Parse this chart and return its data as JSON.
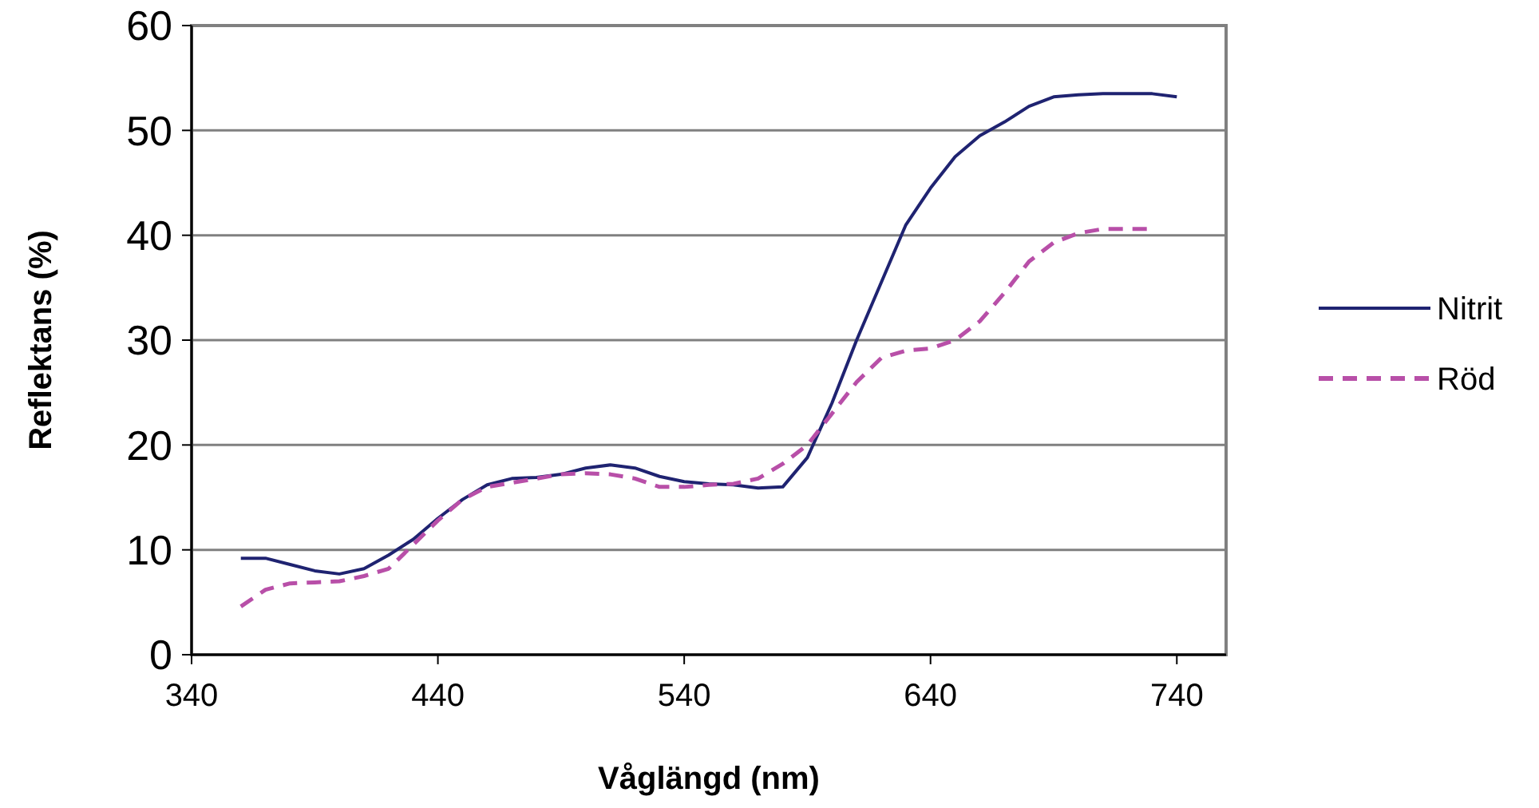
{
  "chart_data": {
    "type": "line",
    "xlabel": "Våglängd (nm)",
    "ylabel": "Reflektans (%)",
    "xlim": [
      340,
      760
    ],
    "xticks": [
      340,
      440,
      540,
      640,
      740
    ],
    "ylim": [
      0,
      60
    ],
    "yticks": [
      0,
      10,
      20,
      30,
      40,
      50,
      60
    ],
    "grid": "y",
    "legend": "right",
    "marker": "none",
    "series": [
      {
        "name": "Nitrit",
        "color": "#1f2371",
        "line_style": "solid",
        "x": [
          360,
          370,
          380,
          390,
          400,
          410,
          420,
          430,
          440,
          450,
          460,
          470,
          480,
          490,
          500,
          510,
          520,
          530,
          540,
          550,
          560,
          570,
          580,
          590,
          600,
          610,
          620,
          630,
          640,
          650,
          660,
          670,
          680,
          690,
          700,
          710,
          720,
          730,
          740
        ],
        "values": [
          9.2,
          9.2,
          8.6,
          8.0,
          7.7,
          8.2,
          9.5,
          11,
          13,
          14.8,
          16.2,
          16.8,
          16.9,
          17.2,
          17.8,
          18.1,
          17.8,
          17.0,
          16.5,
          16.3,
          16.2,
          15.9,
          16.0,
          18.8,
          24,
          30,
          35.5,
          41,
          44.5,
          47.5,
          49.5,
          50.8,
          52.3,
          53.2,
          53.4,
          53.5,
          53.5,
          53.5,
          53.2
        ]
      },
      {
        "name": "Röd",
        "color": "#b84fa8",
        "line_style": "dashed",
        "x": [
          360,
          370,
          380,
          390,
          400,
          410,
          420,
          430,
          440,
          450,
          460,
          470,
          480,
          490,
          500,
          510,
          520,
          530,
          540,
          550,
          560,
          570,
          580,
          590,
          600,
          610,
          620,
          630,
          640,
          650,
          660,
          670,
          680,
          690,
          700,
          710,
          720,
          730
        ],
        "values": [
          4.6,
          6.2,
          6.8,
          6.9,
          7.0,
          7.5,
          8.2,
          10.5,
          12.8,
          14.8,
          16.0,
          16.4,
          16.8,
          17.2,
          17.3,
          17.2,
          16.8,
          16.0,
          16.0,
          16.2,
          16.3,
          16.8,
          18.2,
          20,
          23,
          26,
          28.3,
          29,
          29.2,
          30,
          31.8,
          34.5,
          37.5,
          39.3,
          40.2,
          40.6,
          40.6,
          40.6
        ]
      }
    ]
  }
}
